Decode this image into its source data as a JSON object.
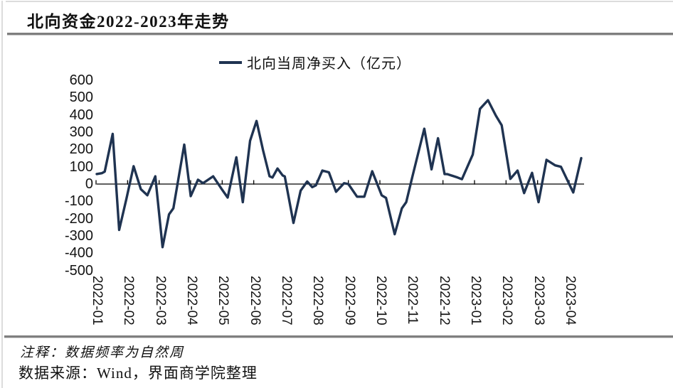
{
  "header": {
    "title": "北向资金2022-2023年走势"
  },
  "legend": {
    "label": "北向当周净买入（亿元）"
  },
  "footer": {
    "note": "注释：数据频率为自然周",
    "source": "数据来源：Wind，界面商学院整理"
  },
  "colors": {
    "line": "#1f3351",
    "axis": "#000000",
    "tick": "#000000",
    "rule": "#7f7f7f",
    "text": "#141414"
  },
  "chart_data": {
    "type": "line",
    "title": "北向资金2022-2023年走势",
    "xlabel": "",
    "ylabel": "",
    "x_unit": "weeks since first observation of 2022-01",
    "x_tick_labels": [
      "2022-01",
      "2022-02",
      "2022-03",
      "2022-04",
      "2022-05",
      "2022-06",
      "2022-07",
      "2022-08",
      "2022-09",
      "2022-10",
      "2022-11",
      "2022-12",
      "2023-01",
      "2023-02",
      "2023-03",
      "2023-04"
    ],
    "x_tick_label_rotation": 90,
    "y_ticks": [
      600,
      500,
      400,
      300,
      200,
      100,
      0,
      -100,
      -200,
      -300,
      -400,
      -500
    ],
    "ylim": [
      -500,
      600
    ],
    "weeks_total": 67,
    "grid": "none",
    "legend_position": "top-center",
    "series": [
      {
        "name": "北向当周净买入（亿元）",
        "points": [
          [
            0.0,
            58
          ],
          [
            0.7,
            63
          ],
          [
            1.1,
            72
          ],
          [
            2.2,
            290
          ],
          [
            3.1,
            -265
          ],
          [
            4.1,
            -85
          ],
          [
            5.1,
            103
          ],
          [
            6.1,
            -30
          ],
          [
            7.0,
            -65
          ],
          [
            8.1,
            45
          ],
          [
            9.1,
            -365
          ],
          [
            10.0,
            -175
          ],
          [
            10.6,
            -140
          ],
          [
            12.1,
            228
          ],
          [
            13.0,
            -70
          ],
          [
            14.0,
            25
          ],
          [
            14.7,
            5
          ],
          [
            16.1,
            45
          ],
          [
            17.3,
            -30
          ],
          [
            18.1,
            -78
          ],
          [
            19.3,
            155
          ],
          [
            20.2,
            -105
          ],
          [
            21.2,
            250
          ],
          [
            22.1,
            365
          ],
          [
            23.0,
            195
          ],
          [
            23.9,
            45
          ],
          [
            24.3,
            38
          ],
          [
            25.0,
            90
          ],
          [
            25.7,
            50
          ],
          [
            26.0,
            44
          ],
          [
            27.2,
            -225
          ],
          [
            28.2,
            -38
          ],
          [
            29.1,
            15
          ],
          [
            29.8,
            -18
          ],
          [
            30.3,
            -8
          ],
          [
            31.2,
            78
          ],
          [
            32.1,
            68
          ],
          [
            33.1,
            -45
          ],
          [
            34.2,
            5
          ],
          [
            34.8,
            0
          ],
          [
            36.0,
            -73
          ],
          [
            37.0,
            -73
          ],
          [
            38.1,
            74
          ],
          [
            39.4,
            -65
          ],
          [
            40.0,
            -80
          ],
          [
            41.2,
            -290
          ],
          [
            42.2,
            -140
          ],
          [
            42.8,
            -105
          ],
          [
            43.6,
            35
          ],
          [
            45.3,
            320
          ],
          [
            46.3,
            85
          ],
          [
            47.2,
            265
          ],
          [
            48.1,
            58
          ],
          [
            48.5,
            57
          ],
          [
            49.9,
            38
          ],
          [
            50.5,
            28
          ],
          [
            52.0,
            170
          ],
          [
            53.0,
            435
          ],
          [
            54.1,
            485
          ],
          [
            55.2,
            395
          ],
          [
            56.0,
            340
          ],
          [
            57.2,
            30
          ],
          [
            58.2,
            78
          ],
          [
            59.1,
            -52
          ],
          [
            60.2,
            65
          ],
          [
            61.1,
            -105
          ],
          [
            62.2,
            140
          ],
          [
            63.4,
            108
          ],
          [
            64.2,
            100
          ],
          [
            65.9,
            -49
          ],
          [
            67.0,
            150
          ]
        ]
      }
    ]
  }
}
